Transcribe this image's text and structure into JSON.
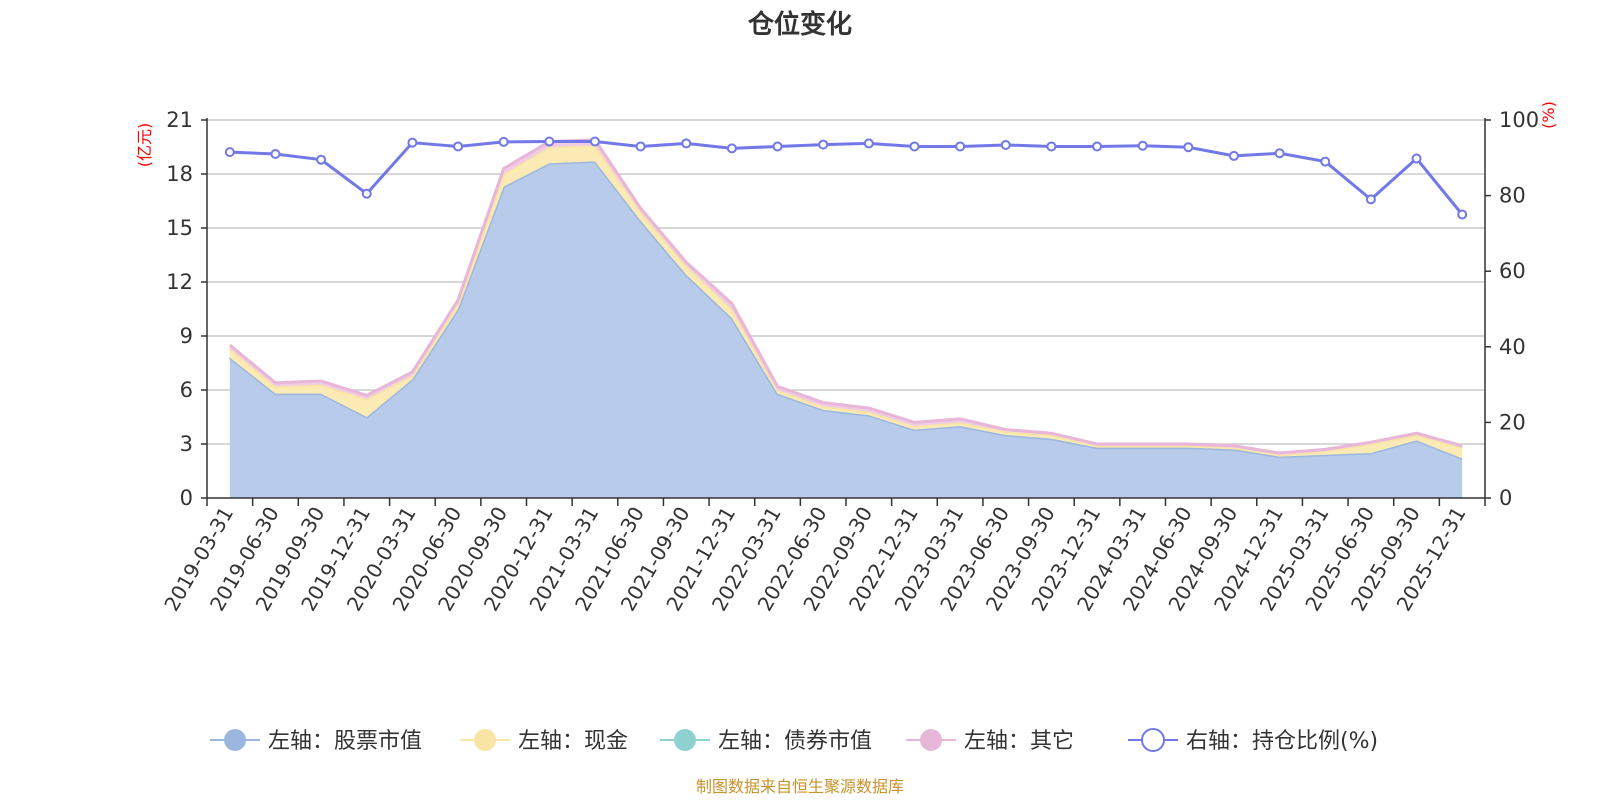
{
  "chart_data": {
    "type": "area",
    "title": "仓位变化",
    "left_unit": "(亿元)",
    "right_unit": "(%)",
    "left_ylim": [
      0,
      21
    ],
    "left_ticks": [
      0,
      3,
      6,
      9,
      12,
      15,
      18,
      21
    ],
    "right_ylim": [
      0,
      100
    ],
    "right_ticks": [
      0,
      20,
      40,
      60,
      80,
      100
    ],
    "categories": [
      "2019-03-31",
      "2019-06-30",
      "2019-09-30",
      "2019-12-31",
      "2020-03-31",
      "2020-06-30",
      "2020-09-30",
      "2020-12-31",
      "2021-03-31",
      "2021-06-30",
      "2021-09-30",
      "2021-12-31",
      "2022-03-31",
      "2022-06-30",
      "2022-09-30",
      "2022-12-31",
      "2023-03-31",
      "2023-06-30",
      "2023-09-30",
      "2023-12-31",
      "2024-03-31",
      "2024-06-30",
      "2024-09-30",
      "2024-12-31",
      "2025-03-31",
      "2025-06-30",
      "2025-09-30",
      "2025-12-31"
    ],
    "series": [
      {
        "name": "左轴：股票市值",
        "axis": "left",
        "color": "#9bb7e0",
        "fill": "#b8cbea",
        "values": [
          7.8,
          5.8,
          5.8,
          4.5,
          6.6,
          10.5,
          17.3,
          18.6,
          18.7,
          15.4,
          12.4,
          10.0,
          5.8,
          4.9,
          4.6,
          3.8,
          4.0,
          3.5,
          3.3,
          2.8,
          2.8,
          2.8,
          2.7,
          2.3,
          2.4,
          2.5,
          3.2,
          2.2
        ]
      },
      {
        "name": "左轴：现金",
        "axis": "left",
        "color": "#f8e4a4",
        "fill": "#fbeab4",
        "values": [
          0.5,
          0.4,
          0.5,
          1.0,
          0.2,
          0.3,
          0.7,
          0.9,
          0.9,
          0.5,
          0.5,
          0.5,
          0.2,
          0.2,
          0.2,
          0.2,
          0.2,
          0.2,
          0.2,
          0.1,
          0.1,
          0.1,
          0.1,
          0.1,
          0.2,
          0.5,
          0.3,
          0.6
        ]
      },
      {
        "name": "左轴：债券市值",
        "axis": "left",
        "color": "#8fd1cf",
        "fill": "#a5dbd9",
        "values": [
          0,
          0,
          0,
          0,
          0,
          0,
          0,
          0,
          0,
          0,
          0,
          0,
          0,
          0,
          0,
          0,
          0,
          0,
          0,
          0,
          0,
          0,
          0,
          0,
          0,
          0,
          0,
          0
        ]
      },
      {
        "name": "左轴：其它",
        "axis": "left",
        "color": "#e8b6d8",
        "fill": "#f0cce4",
        "values": [
          0.2,
          0.2,
          0.2,
          0.2,
          0.2,
          0.2,
          0.3,
          0.3,
          0.3,
          0.2,
          0.2,
          0.3,
          0.2,
          0.2,
          0.2,
          0.2,
          0.2,
          0.1,
          0.1,
          0.1,
          0.1,
          0.1,
          0.1,
          0.1,
          0.1,
          0.1,
          0.1,
          0.1
        ]
      },
      {
        "name": "右轴：持仓比例(%)",
        "axis": "right",
        "color": "#7278e8",
        "values": [
          91.5,
          91.0,
          89.5,
          80.5,
          94.0,
          93.0,
          94.2,
          94.3,
          94.3,
          93.0,
          93.8,
          92.5,
          93.0,
          93.5,
          93.8,
          93.0,
          93.0,
          93.4,
          93.0,
          93.0,
          93.2,
          92.8,
          90.5,
          91.2,
          89.0,
          79.0,
          89.8,
          75.0
        ]
      }
    ],
    "source": "制图数据来自恒生聚源数据库"
  }
}
